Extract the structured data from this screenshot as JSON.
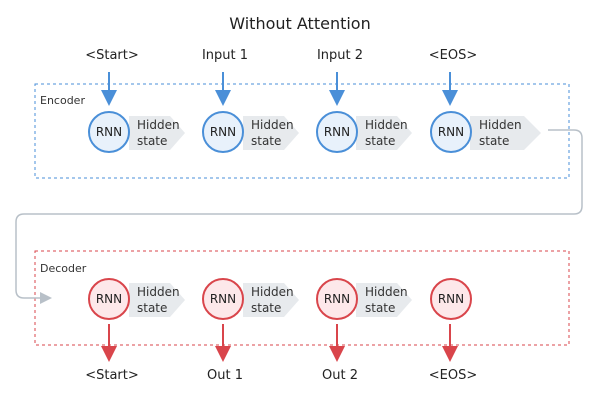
{
  "title": "Without Attention",
  "encoder": {
    "label": "Encoder",
    "color": "#4a8fd8",
    "inputs": [
      "<Start>",
      "Input 1",
      "Input 2",
      "<EOS>"
    ],
    "node_label": "RNN",
    "hidden_label_line1": "Hidden",
    "hidden_label_line2": "state"
  },
  "decoder": {
    "label": "Decoder",
    "color": "#d9454b",
    "outputs": [
      "<Start>",
      "Out 1",
      "Out 2",
      "<EOS>"
    ],
    "node_label": "RNN",
    "hidden_label_line1": "Hidden",
    "hidden_label_line2": "state"
  }
}
